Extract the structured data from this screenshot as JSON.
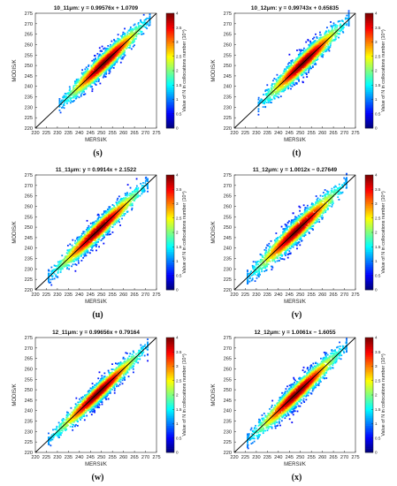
{
  "chart_data": [
    {
      "type": "scatter",
      "subplot_label": "(s)",
      "title": "10_11μm: y = 0.99576x + 1.0709",
      "xlabel": "MERSI/K",
      "ylabel": "MODIS/K",
      "xlim": [
        220,
        275
      ],
      "ylim": [
        220,
        275
      ],
      "x_ticks": [
        "220",
        "225",
        "230",
        "235",
        "240",
        "245",
        "250",
        "255",
        "260",
        "265",
        "270",
        "275"
      ],
      "y_ticks": [
        "220",
        "225",
        "230",
        "235",
        "240",
        "245",
        "250",
        "255",
        "260",
        "265",
        "270",
        "275"
      ],
      "slope": 0.99576,
      "intercept": 1.0709,
      "x_range": [
        231,
        272
      ],
      "density_spread": 3.0,
      "colorbar": {
        "label": "Value of N in collocations number (10⁴)",
        "range": [
          0,
          4
        ],
        "ticks": [
          "0",
          "0.5",
          "1",
          "1.5",
          "2",
          "2.5",
          "3",
          "3.5",
          "4"
        ]
      }
    },
    {
      "type": "scatter",
      "subplot_label": "(t)",
      "title": "10_12μm: y = 0.99743x + 0.65835",
      "xlabel": "MERSI/K",
      "ylabel": "MODIS/K",
      "xlim": [
        220,
        275
      ],
      "ylim": [
        220,
        275
      ],
      "x_ticks": [
        "220",
        "225",
        "230",
        "235",
        "240",
        "245",
        "250",
        "255",
        "260",
        "265",
        "270",
        "275"
      ],
      "y_ticks": [
        "220",
        "225",
        "230",
        "235",
        "240",
        "245",
        "250",
        "255",
        "260",
        "265",
        "270",
        "275"
      ],
      "slope": 0.99743,
      "intercept": 0.65835,
      "x_range": [
        231,
        272
      ],
      "density_spread": 3.1,
      "colorbar": {
        "label": "Value of N in collocations number (10⁴)",
        "range": [
          0,
          4
        ],
        "ticks": [
          "0",
          "0.5",
          "1",
          "1.5",
          "2",
          "2.5",
          "3",
          "3.5",
          "4"
        ]
      }
    },
    {
      "type": "scatter",
      "subplot_label": "(u)",
      "title": "11_11μm: y = 0.9914x + 2.1522",
      "xlabel": "MERSI/K",
      "ylabel": "MODIS/K",
      "xlim": [
        220,
        275
      ],
      "ylim": [
        220,
        275
      ],
      "x_ticks": [
        "220",
        "225",
        "230",
        "235",
        "240",
        "245",
        "250",
        "255",
        "260",
        "265",
        "270",
        "275"
      ],
      "y_ticks": [
        "220",
        "225",
        "230",
        "235",
        "240",
        "245",
        "250",
        "255",
        "260",
        "265",
        "270",
        "275"
      ],
      "slope": 0.9914,
      "intercept": 2.1522,
      "x_range": [
        226,
        271
      ],
      "density_spread": 3.0,
      "colorbar": {
        "label": "Value of N in collocations number (10⁴)",
        "range": [
          0,
          4
        ],
        "ticks": [
          "0",
          "0.5",
          "1",
          "1.5",
          "2",
          "2.5",
          "3",
          "3.5",
          "4"
        ]
      }
    },
    {
      "type": "scatter",
      "subplot_label": "(v)",
      "title": "11_12μm: y = 1.0012x − 0.27649",
      "xlabel": "MERSI/K",
      "ylabel": "MODIS/K",
      "xlim": [
        220,
        275
      ],
      "ylim": [
        220,
        275
      ],
      "x_ticks": [
        "220",
        "225",
        "230",
        "235",
        "240",
        "245",
        "250",
        "255",
        "260",
        "265",
        "270",
        "275"
      ],
      "y_ticks": [
        "220",
        "225",
        "230",
        "235",
        "240",
        "245",
        "250",
        "255",
        "260",
        "265",
        "270",
        "275"
      ],
      "slope": 1.0012,
      "intercept": -0.27649,
      "x_range": [
        226,
        271
      ],
      "density_spread": 3.3,
      "colorbar": {
        "label": "Value of N in collocations number (10⁴)",
        "range": [
          0,
          4
        ],
        "ticks": [
          "0",
          "0.5",
          "1",
          "1.5",
          "2",
          "2.5",
          "3",
          "3.5",
          "4"
        ]
      }
    },
    {
      "type": "scatter",
      "subplot_label": "(w)",
      "title": "12_11μm: y = 0.99656x + 0.79164",
      "xlabel": "MERSI/K",
      "ylabel": "MODIS/K",
      "xlim": [
        220,
        275
      ],
      "ylim": [
        220,
        275
      ],
      "x_ticks": [
        "220",
        "225",
        "230",
        "235",
        "240",
        "245",
        "250",
        "255",
        "260",
        "265",
        "270",
        "275"
      ],
      "y_ticks": [
        "220",
        "225",
        "230",
        "235",
        "240",
        "245",
        "250",
        "255",
        "260",
        "265",
        "270",
        "275"
      ],
      "slope": 0.99656,
      "intercept": 0.79164,
      "x_range": [
        226,
        271
      ],
      "density_spread": 2.8,
      "colorbar": {
        "label": "Value of N in collocations number (10⁴)",
        "range": [
          0,
          4
        ],
        "ticks": [
          "0",
          "0.5",
          "1",
          "1.5",
          "2",
          "2.5",
          "3",
          "3.5",
          "4"
        ]
      }
    },
    {
      "type": "scatter",
      "subplot_label": "(x)",
      "title": "12_12μm: y = 1.0061x − 1.6055",
      "xlabel": "MERSI/K",
      "ylabel": "MODIS/K",
      "xlim": [
        220,
        275
      ],
      "ylim": [
        220,
        275
      ],
      "x_ticks": [
        "220",
        "225",
        "230",
        "235",
        "240",
        "245",
        "250",
        "255",
        "260",
        "265",
        "270",
        "275"
      ],
      "y_ticks": [
        "220",
        "225",
        "230",
        "235",
        "240",
        "245",
        "250",
        "255",
        "260",
        "265",
        "270",
        "275"
      ],
      "slope": 1.0061,
      "intercept": -1.6055,
      "x_range": [
        226,
        271
      ],
      "density_spread": 3.1,
      "colorbar": {
        "label": "Value of N in collocations number (10⁴)",
        "range": [
          0,
          4
        ],
        "ticks": [
          "0",
          "0.5",
          "1",
          "1.5",
          "2",
          "2.5",
          "3",
          "3.5",
          "4"
        ]
      }
    }
  ],
  "colors": {
    "diagonal": "#000000",
    "axis": "#222222"
  }
}
